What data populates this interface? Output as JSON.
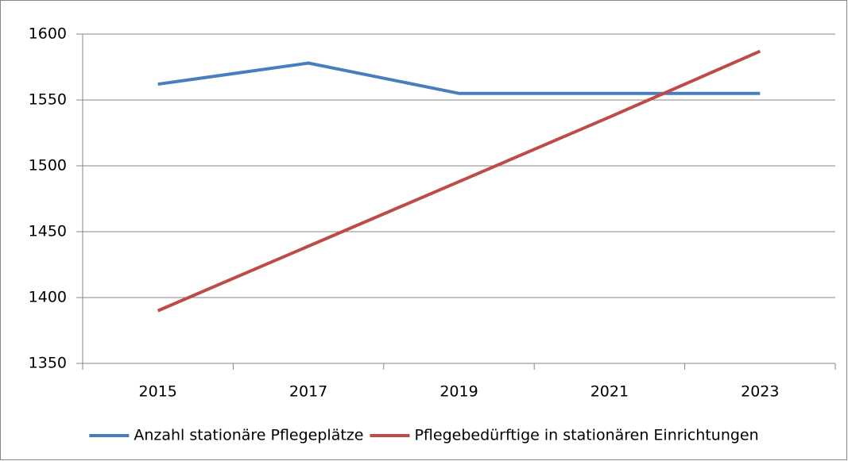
{
  "chart_data": {
    "type": "line",
    "categories": [
      "2015",
      "2017",
      "2019",
      "2021",
      "2023"
    ],
    "series": [
      {
        "name": "Anzahl stationäre Pflegeplätze",
        "color": "#4a7ebb",
        "values": [
          1562,
          1578,
          1555,
          1555,
          1555
        ]
      },
      {
        "name": "Pflegebedürftige in stationären Einrichtungen",
        "color": "#be4b48",
        "values": [
          1390,
          1439,
          1488,
          1537,
          1587
        ]
      }
    ],
    "ylim": [
      1350,
      1600
    ],
    "yticks": [
      1350,
      1400,
      1450,
      1500,
      1550,
      1600
    ],
    "grid": true,
    "legend": "bottom"
  }
}
